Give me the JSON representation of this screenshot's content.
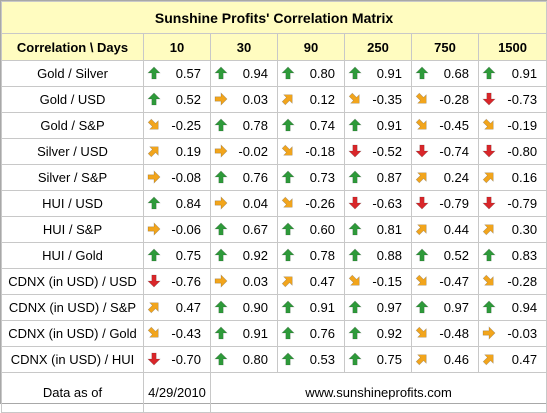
{
  "title": "Sunshine Profits' Correlation Matrix",
  "header": {
    "corner": "Correlation \\ Days",
    "days": [
      "10",
      "30",
      "90",
      "250",
      "750",
      "1500"
    ]
  },
  "colors": {
    "up": "#2e9a3a",
    "down": "#d9262a",
    "neutral": "#f2a51c",
    "header_bg": "#fffcc0"
  },
  "rows": [
    {
      "label": "Gold / Silver",
      "cells": [
        {
          "value": "0.57",
          "arrow": "up"
        },
        {
          "value": "0.94",
          "arrow": "up"
        },
        {
          "value": "0.80",
          "arrow": "up"
        },
        {
          "value": "0.91",
          "arrow": "up"
        },
        {
          "value": "0.68",
          "arrow": "up"
        },
        {
          "value": "0.91",
          "arrow": "up"
        }
      ]
    },
    {
      "label": "Gold / USD",
      "cells": [
        {
          "value": "0.52",
          "arrow": "up"
        },
        {
          "value": "0.03",
          "arrow": "right"
        },
        {
          "value": "0.12",
          "arrow": "up-right"
        },
        {
          "value": "-0.35",
          "arrow": "down-right"
        },
        {
          "value": "-0.28",
          "arrow": "down-right"
        },
        {
          "value": "-0.73",
          "arrow": "down"
        }
      ]
    },
    {
      "label": "Gold / S&P",
      "cells": [
        {
          "value": "-0.25",
          "arrow": "down-right"
        },
        {
          "value": "0.78",
          "arrow": "up"
        },
        {
          "value": "0.74",
          "arrow": "up"
        },
        {
          "value": "0.91",
          "arrow": "up"
        },
        {
          "value": "-0.45",
          "arrow": "down-right"
        },
        {
          "value": "-0.19",
          "arrow": "down-right"
        }
      ]
    },
    {
      "label": "Silver / USD",
      "cells": [
        {
          "value": "0.19",
          "arrow": "up-right"
        },
        {
          "value": "-0.02",
          "arrow": "right"
        },
        {
          "value": "-0.18",
          "arrow": "down-right"
        },
        {
          "value": "-0.52",
          "arrow": "down"
        },
        {
          "value": "-0.74",
          "arrow": "down"
        },
        {
          "value": "-0.80",
          "arrow": "down"
        }
      ]
    },
    {
      "label": "Silver / S&P",
      "cells": [
        {
          "value": "-0.08",
          "arrow": "right"
        },
        {
          "value": "0.76",
          "arrow": "up"
        },
        {
          "value": "0.73",
          "arrow": "up"
        },
        {
          "value": "0.87",
          "arrow": "up"
        },
        {
          "value": "0.24",
          "arrow": "up-right"
        },
        {
          "value": "0.16",
          "arrow": "up-right"
        }
      ]
    },
    {
      "label": "HUI / USD",
      "cells": [
        {
          "value": "0.84",
          "arrow": "up"
        },
        {
          "value": "0.04",
          "arrow": "right"
        },
        {
          "value": "-0.26",
          "arrow": "down-right"
        },
        {
          "value": "-0.63",
          "arrow": "down"
        },
        {
          "value": "-0.79",
          "arrow": "down"
        },
        {
          "value": "-0.79",
          "arrow": "down"
        }
      ]
    },
    {
      "label": "HUI / S&P",
      "cells": [
        {
          "value": "-0.06",
          "arrow": "right"
        },
        {
          "value": "0.67",
          "arrow": "up"
        },
        {
          "value": "0.60",
          "arrow": "up"
        },
        {
          "value": "0.81",
          "arrow": "up"
        },
        {
          "value": "0.44",
          "arrow": "up-right"
        },
        {
          "value": "0.30",
          "arrow": "up-right"
        }
      ]
    },
    {
      "label": "HUI / Gold",
      "cells": [
        {
          "value": "0.75",
          "arrow": "up"
        },
        {
          "value": "0.92",
          "arrow": "up"
        },
        {
          "value": "0.78",
          "arrow": "up"
        },
        {
          "value": "0.88",
          "arrow": "up"
        },
        {
          "value": "0.52",
          "arrow": "up"
        },
        {
          "value": "0.83",
          "arrow": "up"
        }
      ]
    },
    {
      "label": "CDNX (in USD) / USD",
      "cells": [
        {
          "value": "-0.76",
          "arrow": "down"
        },
        {
          "value": "0.03",
          "arrow": "right"
        },
        {
          "value": "0.47",
          "arrow": "up-right"
        },
        {
          "value": "-0.15",
          "arrow": "down-right"
        },
        {
          "value": "-0.47",
          "arrow": "down-right"
        },
        {
          "value": "-0.28",
          "arrow": "down-right"
        }
      ]
    },
    {
      "label": "CDNX (in USD) / S&P",
      "cells": [
        {
          "value": "0.47",
          "arrow": "up-right"
        },
        {
          "value": "0.90",
          "arrow": "up"
        },
        {
          "value": "0.91",
          "arrow": "up"
        },
        {
          "value": "0.97",
          "arrow": "up"
        },
        {
          "value": "0.97",
          "arrow": "up"
        },
        {
          "value": "0.94",
          "arrow": "up"
        }
      ]
    },
    {
      "label": "CDNX (in USD) / Gold",
      "cells": [
        {
          "value": "-0.43",
          "arrow": "down-right"
        },
        {
          "value": "0.91",
          "arrow": "up"
        },
        {
          "value": "0.76",
          "arrow": "up"
        },
        {
          "value": "0.92",
          "arrow": "up"
        },
        {
          "value": "-0.48",
          "arrow": "down-right"
        },
        {
          "value": "-0.03",
          "arrow": "right"
        }
      ]
    },
    {
      "label": "CDNX (in USD) / HUI",
      "cells": [
        {
          "value": "-0.70",
          "arrow": "down"
        },
        {
          "value": "0.80",
          "arrow": "up"
        },
        {
          "value": "0.53",
          "arrow": "up"
        },
        {
          "value": "0.75",
          "arrow": "up"
        },
        {
          "value": "0.46",
          "arrow": "up-right"
        },
        {
          "value": "0.47",
          "arrow": "up-right"
        }
      ]
    }
  ],
  "footer": {
    "label": "Data as of",
    "date": "4/29/2010",
    "website": "www.sunshineprofits.com"
  }
}
